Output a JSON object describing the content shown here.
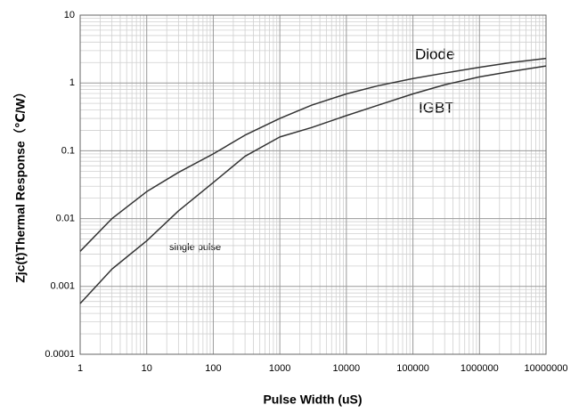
{
  "chart_data": {
    "type": "line",
    "xlabel": "Pulse Width  (uS)",
    "ylabel": "Zjc(t)Thermal Response（℃/W）",
    "annotations": [
      "Diode",
      "IGBT",
      "single pulse"
    ],
    "x": [
      1,
      3,
      10,
      30,
      100,
      300,
      1000,
      3000,
      10000,
      30000,
      100000,
      300000,
      1000000,
      3000000,
      10000000
    ],
    "series": [
      {
        "name": "Diode",
        "color": "#333333",
        "values": [
          0.0033,
          0.01,
          0.025,
          0.048,
          0.09,
          0.17,
          0.3,
          0.47,
          0.69,
          0.91,
          1.16,
          1.4,
          1.7,
          2.0,
          2.3
        ]
      },
      {
        "name": "IGBT",
        "color": "#333333",
        "values": [
          0.00056,
          0.0018,
          0.0047,
          0.013,
          0.034,
          0.083,
          0.16,
          0.22,
          0.33,
          0.47,
          0.69,
          0.94,
          1.23,
          1.48,
          1.78
        ]
      }
    ],
    "xlim": [
      1,
      10000000
    ],
    "ylim": [
      0.0001,
      10
    ],
    "xticks": [
      1,
      10,
      100,
      1000,
      10000,
      100000,
      1000000,
      10000000
    ],
    "yticks": [
      0.0001,
      0.001,
      0.01,
      0.1,
      1,
      10
    ],
    "xscale": "log",
    "yscale": "log",
    "grid": true,
    "legend": false
  }
}
